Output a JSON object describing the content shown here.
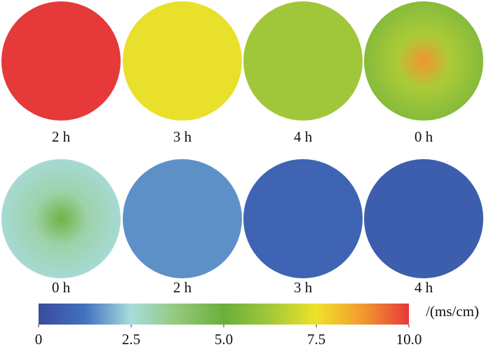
{
  "chart_data": {
    "type": "heatmap-panels",
    "panels": [
      {
        "label": "2 h",
        "center": 10,
        "edge": 10
      },
      {
        "label": "3 h",
        "center": 7.4,
        "edge": 7.4
      },
      {
        "label": "4 h",
        "center": 6.2,
        "edge": 6.2
      },
      {
        "label": "0 h",
        "center": 8.8,
        "edge": 5.6
      },
      {
        "label": "0 h",
        "center": 4.8,
        "edge": 2.6
      },
      {
        "label": "2 h",
        "center": 1.6,
        "edge": 1.6
      },
      {
        "label": "3 h",
        "center": 0.8,
        "edge": 0.8
      },
      {
        "label": "4 h",
        "center": 0.6,
        "edge": 0.6
      }
    ],
    "colorbar": {
      "lim": [
        0,
        10
      ],
      "ticks": [
        0,
        2.5,
        {
          "value": 5,
          "label": "5.0"
        },
        7.5,
        {
          "value": 10,
          "label": "10.0"
        }
      ],
      "label": "/(ms/cm)",
      "colorscale": [
        "#3a4a9c",
        "#4172c0",
        "#a8dcdc",
        "#94c87a",
        "#6aaf3c",
        "#a2c83a",
        "#efe22a",
        "#f29a30",
        "#e6393a"
      ]
    }
  }
}
